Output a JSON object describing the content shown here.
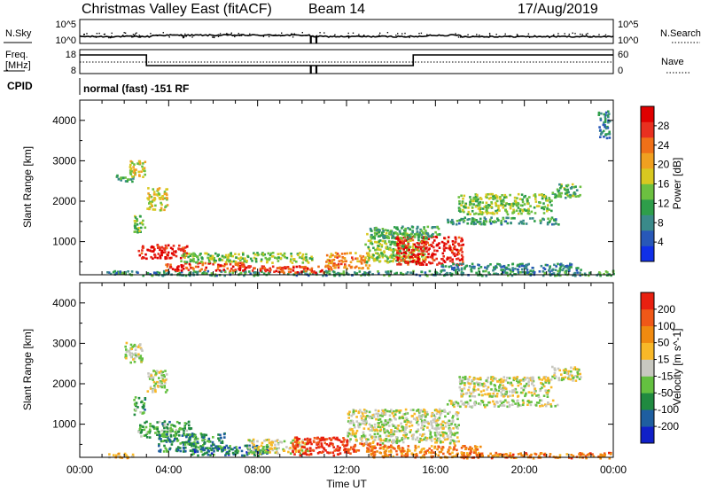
{
  "header": {
    "title": "Christmas Valley East (fitACF)",
    "beam": "Beam 14",
    "date": "17/Aug/2019"
  },
  "noise_panel": {
    "left_label": "N.Sky",
    "left_ticks": [
      "10^5",
      "10^0"
    ],
    "right_ticks": [
      "10^5",
      "10^0"
    ],
    "right_label": "N.Search"
  },
  "freq_panel": {
    "left_label_1": "Freq.",
    "left_label_2": "[MHz]",
    "left_ticks": [
      "18",
      "8"
    ],
    "right_ticks": [
      "60",
      "0"
    ],
    "right_label": "Nave"
  },
  "cpid": {
    "label": "CPID",
    "text": "normal (fast) -151 RF"
  },
  "chart_data": [
    {
      "type": "heatmap",
      "name": "power",
      "ylabel": "Slant Range [km]",
      "xlabel": "",
      "yticks": [
        "1000",
        "2000",
        "3000",
        "4000"
      ],
      "ylim": [
        180,
        4500
      ],
      "xlim_hours": [
        0,
        24
      ],
      "colorbar": {
        "label": "Power [dB]",
        "ticks": [
          "4",
          "8",
          "12",
          "16",
          "20",
          "24",
          "28"
        ],
        "range": [
          0,
          32
        ],
        "colors": [
          "#1030e8",
          "#2858b8",
          "#3a8a8a",
          "#2e9e4a",
          "#6cc040",
          "#d8c820",
          "#f0a020",
          "#f07018",
          "#e83020",
          "#e00000"
        ]
      },
      "features": [
        {
          "t0": 1.1,
          "t1": 24.0,
          "r0": 180,
          "r1": 300,
          "level": 0.3
        },
        {
          "t0": 1.6,
          "t1": 2.4,
          "r0": 2500,
          "r1": 2700,
          "level": 0.35
        },
        {
          "t0": 2.2,
          "t1": 2.9,
          "r0": 2600,
          "r1": 3050,
          "level": 0.55
        },
        {
          "t0": 3.0,
          "t1": 3.9,
          "r0": 1800,
          "r1": 2350,
          "level": 0.55
        },
        {
          "t0": 2.4,
          "t1": 2.9,
          "r0": 1250,
          "r1": 1700,
          "level": 0.45
        },
        {
          "t0": 2.6,
          "t1": 4.8,
          "r0": 600,
          "r1": 950,
          "level": 0.9
        },
        {
          "t0": 3.8,
          "t1": 7.5,
          "r0": 300,
          "r1": 500,
          "level": 0.85
        },
        {
          "t0": 4.5,
          "t1": 10.5,
          "r0": 500,
          "r1": 750,
          "level": 0.45
        },
        {
          "t0": 7.5,
          "t1": 11.3,
          "r0": 250,
          "r1": 420,
          "level": 0.85
        },
        {
          "t0": 11.0,
          "t1": 13.0,
          "r0": 350,
          "r1": 750,
          "level": 0.7
        },
        {
          "t0": 12.8,
          "t1": 15.5,
          "r0": 500,
          "r1": 1250,
          "level": 0.45
        },
        {
          "t0": 14.2,
          "t1": 17.2,
          "r0": 450,
          "r1": 1150,
          "level": 0.9
        },
        {
          "t0": 13.0,
          "t1": 16.2,
          "r0": 1100,
          "r1": 1400,
          "level": 0.35
        },
        {
          "t0": 16.2,
          "t1": 22.5,
          "r0": 300,
          "r1": 480,
          "level": 0.25
        },
        {
          "t0": 17.0,
          "t1": 21.2,
          "r0": 1700,
          "r1": 2200,
          "level": 0.45
        },
        {
          "t0": 21.2,
          "t1": 22.5,
          "r0": 2100,
          "r1": 2450,
          "level": 0.4
        },
        {
          "t0": 16.5,
          "t1": 21.5,
          "r0": 1450,
          "r1": 1620,
          "level": 0.3
        },
        {
          "t0": 23.3,
          "t1": 23.8,
          "r0": 3550,
          "r1": 4250,
          "level": 0.25
        }
      ]
    },
    {
      "type": "heatmap",
      "name": "velocity",
      "ylabel": "Slant Range [km]",
      "xlabel": "Time UT",
      "xticks": [
        "00:00",
        "04:00",
        "08:00",
        "12:00",
        "16:00",
        "20:00",
        "00:00"
      ],
      "yticks": [
        "1000",
        "2000",
        "3000",
        "4000"
      ],
      "ylim": [
        180,
        4500
      ],
      "xlim_hours": [
        0,
        24
      ],
      "colorbar": {
        "label": "Velocity [m s^-1]",
        "ticks": [
          "200",
          "100",
          "50",
          "15",
          "-15",
          "-50",
          "-100",
          "-200"
        ],
        "range": [
          -250,
          250
        ],
        "colors": [
          "#1020c8",
          "#1e5ea0",
          "#208a40",
          "#64c040",
          "#c8c8c0",
          "#f8b828",
          "#f08a10",
          "#f05818",
          "#e82010"
        ]
      },
      "features": [
        {
          "t0": 1.1,
          "t1": 2.5,
          "r0": 180,
          "r1": 300,
          "level": 0.65
        },
        {
          "t0": 2.0,
          "t1": 2.8,
          "r0": 2550,
          "r1": 3050,
          "level": 0.5
        },
        {
          "t0": 3.0,
          "t1": 3.9,
          "r0": 1800,
          "r1": 2350,
          "level": 0.5
        },
        {
          "t0": 2.4,
          "t1": 2.9,
          "r0": 1250,
          "r1": 1700,
          "level": 0.35
        },
        {
          "t0": 2.6,
          "t1": 5.0,
          "r0": 700,
          "r1": 1100,
          "level": 0.35
        },
        {
          "t0": 3.5,
          "t1": 6.5,
          "r0": 350,
          "r1": 800,
          "level": 0.28
        },
        {
          "t0": 5.0,
          "t1": 8.5,
          "r0": 250,
          "r1": 500,
          "level": 0.22
        },
        {
          "t0": 7.5,
          "t1": 10.3,
          "r0": 300,
          "r1": 650,
          "level": 0.5
        },
        {
          "t0": 9.5,
          "t1": 12.0,
          "r0": 250,
          "r1": 700,
          "level": 0.92
        },
        {
          "t0": 12.0,
          "t1": 13.5,
          "r0": 300,
          "r1": 550,
          "level": 0.82
        },
        {
          "t0": 12.0,
          "t1": 17.0,
          "r0": 550,
          "r1": 1400,
          "level": 0.5
        },
        {
          "t0": 13.0,
          "t1": 18.0,
          "r0": 200,
          "r1": 500,
          "level": 0.75
        },
        {
          "t0": 17.0,
          "t1": 21.2,
          "r0": 1700,
          "r1": 2200,
          "level": 0.5
        },
        {
          "t0": 21.2,
          "t1": 22.5,
          "r0": 2100,
          "r1": 2450,
          "level": 0.5
        },
        {
          "t0": 16.5,
          "t1": 21.5,
          "r0": 1450,
          "r1": 1620,
          "level": 0.5
        },
        {
          "t0": 17.0,
          "t1": 24.0,
          "r0": 180,
          "r1": 320,
          "level": 0.78
        }
      ]
    }
  ]
}
